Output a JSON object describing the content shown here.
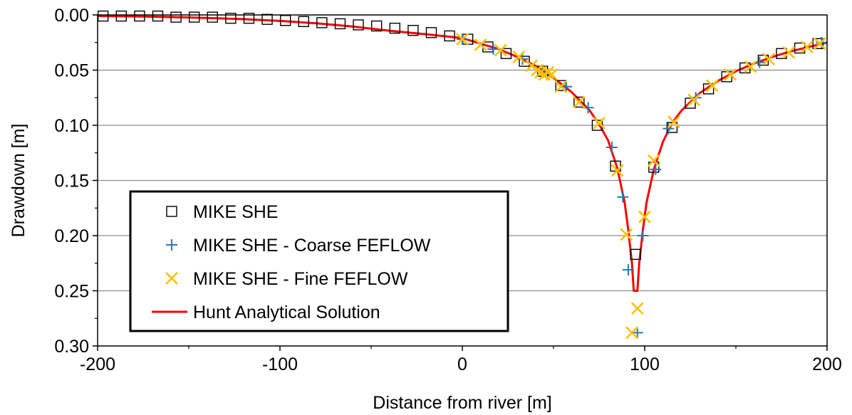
{
  "chart_data": {
    "type": "scatter",
    "title": "",
    "xlabel": "Distance from river [m]",
    "ylabel": "Drawdown [m]",
    "xlim": [
      -200,
      200
    ],
    "ylim": [
      0,
      0.3
    ],
    "y_inverted": true,
    "x_ticks": [
      -200,
      -100,
      0,
      100,
      200
    ],
    "x_tick_labels": [
      "-200",
      "-100",
      "0",
      "100",
      "200"
    ],
    "y_ticks": [
      0,
      0.05,
      0.1,
      0.15,
      0.2,
      0.25,
      0.3
    ],
    "y_tick_labels": [
      "0.00",
      "0.05",
      "0.10",
      "0.15",
      "0.20",
      "0.25",
      "0.30"
    ],
    "grid": "horizontal",
    "legend_position": "bottom-left",
    "series": [
      {
        "name": "MIKE SHE",
        "marker": "square",
        "color": "#000000",
        "points": [
          [
            -197,
            0.001
          ],
          [
            -187,
            0.001
          ],
          [
            -177,
            0.001
          ],
          [
            -167,
            0.001
          ],
          [
            -157,
            0.002
          ],
          [
            -147,
            0.002
          ],
          [
            -137,
            0.002
          ],
          [
            -127,
            0.003
          ],
          [
            -117,
            0.003
          ],
          [
            -107,
            0.004
          ],
          [
            -97,
            0.005
          ],
          [
            -87,
            0.006
          ],
          [
            -77,
            0.007
          ],
          [
            -67,
            0.008
          ],
          [
            -57,
            0.009
          ],
          [
            -47,
            0.01
          ],
          [
            -37,
            0.012
          ],
          [
            -27,
            0.014
          ],
          [
            -17,
            0.016
          ],
          [
            -7,
            0.019
          ],
          [
            3,
            0.022
          ],
          [
            14,
            0.029
          ],
          [
            24,
            0.035
          ],
          [
            34,
            0.042
          ],
          [
            44,
            0.051
          ],
          [
            54,
            0.064
          ],
          [
            64,
            0.079
          ],
          [
            74,
            0.1
          ],
          [
            84,
            0.137
          ],
          [
            95,
            0.217
          ],
          [
            105,
            0.138
          ],
          [
            115,
            0.102
          ],
          [
            125,
            0.08
          ],
          [
            135,
            0.067
          ],
          [
            145,
            0.056
          ],
          [
            155,
            0.048
          ],
          [
            165,
            0.041
          ],
          [
            175,
            0.035
          ],
          [
            185,
            0.03
          ],
          [
            195,
            0.026
          ]
        ]
      },
      {
        "name": "MIKE SHE - Coarse FEFLOW",
        "marker": "plus",
        "color": "#2E75B6",
        "points": [
          [
            0,
            0.022
          ],
          [
            17,
            0.031
          ],
          [
            33,
            0.04
          ],
          [
            44,
            0.052
          ],
          [
            57,
            0.065
          ],
          [
            69,
            0.084
          ],
          [
            82,
            0.12
          ],
          [
            88,
            0.165
          ],
          [
            91,
            0.231
          ],
          [
            96,
            0.288
          ],
          [
            99,
            0.2
          ],
          [
            106,
            0.14
          ],
          [
            113,
            0.103
          ],
          [
            128,
            0.075
          ],
          [
            163,
            0.043
          ],
          [
            197,
            0.025
          ]
        ]
      },
      {
        "name": "MIKE SHE - Fine FEFLOW",
        "marker": "x",
        "color": "#FFC000",
        "points": [
          [
            0,
            0.022
          ],
          [
            10,
            0.027
          ],
          [
            21,
            0.032
          ],
          [
            31,
            0.038
          ],
          [
            38,
            0.046
          ],
          [
            41,
            0.05
          ],
          [
            43,
            0.052
          ],
          [
            45,
            0.054
          ],
          [
            47,
            0.052
          ],
          [
            49,
            0.054
          ],
          [
            54,
            0.065
          ],
          [
            64,
            0.079
          ],
          [
            75,
            0.098
          ],
          [
            85,
            0.141
          ],
          [
            90,
            0.199
          ],
          [
            93,
            0.288
          ],
          [
            96,
            0.266
          ],
          [
            100,
            0.183
          ],
          [
            105,
            0.132
          ],
          [
            116,
            0.097
          ],
          [
            127,
            0.077
          ],
          [
            137,
            0.064
          ],
          [
            147,
            0.054
          ],
          [
            158,
            0.047
          ],
          [
            168,
            0.04
          ],
          [
            179,
            0.034
          ],
          [
            189,
            0.029
          ],
          [
            196,
            0.026
          ]
        ]
      },
      {
        "name": "Hunt Analytical Solution",
        "marker": "line",
        "color": "#FF0000",
        "points": [
          [
            -200,
            0.001
          ],
          [
            -180,
            0.0013
          ],
          [
            -160,
            0.0019
          ],
          [
            -140,
            0.0027
          ],
          [
            -120,
            0.0038
          ],
          [
            -100,
            0.0054
          ],
          [
            -80,
            0.0076
          ],
          [
            -60,
            0.0105
          ],
          [
            -40,
            0.0143
          ],
          [
            -20,
            0.0175
          ],
          [
            0,
            0.021
          ],
          [
            10,
            0.026
          ],
          [
            20,
            0.031
          ],
          [
            30,
            0.038
          ],
          [
            40,
            0.046
          ],
          [
            50,
            0.057
          ],
          [
            60,
            0.07
          ],
          [
            70,
            0.087
          ],
          [
            75,
            0.099
          ],
          [
            80,
            0.114
          ],
          [
            85,
            0.139
          ],
          [
            89,
            0.17
          ],
          [
            91,
            0.195
          ],
          [
            93,
            0.225
          ],
          [
            94,
            0.25
          ],
          [
            96,
            0.25
          ],
          [
            97,
            0.225
          ],
          [
            99,
            0.195
          ],
          [
            101,
            0.17
          ],
          [
            105,
            0.14
          ],
          [
            110,
            0.115
          ],
          [
            115,
            0.098
          ],
          [
            120,
            0.087
          ],
          [
            130,
            0.071
          ],
          [
            140,
            0.06
          ],
          [
            150,
            0.051
          ],
          [
            160,
            0.044
          ],
          [
            170,
            0.038
          ],
          [
            180,
            0.033
          ],
          [
            190,
            0.029
          ],
          [
            200,
            0.025
          ]
        ]
      }
    ]
  }
}
